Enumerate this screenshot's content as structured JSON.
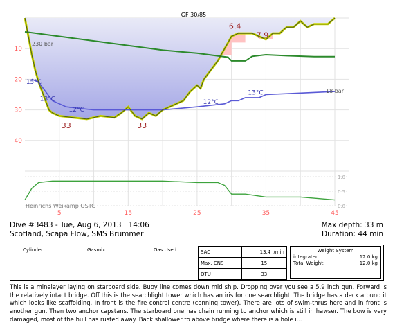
{
  "chart_data": {
    "type": "line",
    "xlim": [
      0,
      45
    ],
    "ylim": [
      0,
      50
    ],
    "x_ticks": [
      "5",
      "15",
      "25",
      "35",
      "45"
    ],
    "y_ticks": [
      "10",
      "20",
      "30",
      "40"
    ],
    "gf_label": "GF 30/85",
    "tank_label_start": "230 bar",
    "tank_label_end": "18 bar",
    "footer_left": "Heinrichs Weikamp OSTC",
    "right_ticks": [
      "1.0",
      "0.5",
      "0.0"
    ],
    "colors": {
      "depth_line": "#c8d400",
      "depth_fill_top": "#e9eaf7",
      "depth_fill_bottom": "#a4a7e6",
      "tank": "#2c8a2c",
      "temperature": "#5a5ad6",
      "ceiling": "#ffc2c2",
      "ppo2": "#3da33d",
      "grid": "#e2e2e2",
      "labels": "#a02828",
      "axis_labels": "#ff5a5a"
    },
    "depth": [
      [
        0,
        0
      ],
      [
        0.5,
        6
      ],
      [
        1,
        12
      ],
      [
        1.5,
        17
      ],
      [
        2,
        21
      ],
      [
        2.5,
        24
      ],
      [
        3,
        27
      ],
      [
        3.5,
        30
      ],
      [
        4,
        31
      ],
      [
        5,
        32
      ],
      [
        7,
        32.5
      ],
      [
        9,
        33
      ],
      [
        11,
        32
      ],
      [
        13,
        32.5
      ],
      [
        14,
        31
      ],
      [
        15,
        29
      ],
      [
        16,
        32
      ],
      [
        17,
        33
      ],
      [
        18,
        31
      ],
      [
        19,
        32
      ],
      [
        20,
        30
      ],
      [
        21,
        29
      ],
      [
        22,
        28
      ],
      [
        23,
        27
      ],
      [
        24,
        24
      ],
      [
        25,
        22
      ],
      [
        25.5,
        23
      ],
      [
        26,
        20
      ],
      [
        27,
        17
      ],
      [
        28,
        14
      ],
      [
        29,
        10
      ],
      [
        30,
        6
      ],
      [
        31,
        5
      ],
      [
        32,
        5
      ],
      [
        33,
        5
      ],
      [
        34,
        6
      ],
      [
        35,
        7
      ],
      [
        36,
        5
      ],
      [
        37,
        5
      ],
      [
        38,
        3
      ],
      [
        39,
        3
      ],
      [
        40,
        1
      ],
      [
        41,
        3
      ],
      [
        42,
        2
      ],
      [
        43,
        2
      ],
      [
        44,
        2
      ],
      [
        45,
        0
      ]
    ],
    "tank_pressure": [
      [
        0,
        4.5
      ],
      [
        5,
        6
      ],
      [
        10,
        7.5
      ],
      [
        15,
        9
      ],
      [
        20,
        10.5
      ],
      [
        25,
        11.5
      ],
      [
        29.5,
        12.8
      ],
      [
        30,
        14
      ],
      [
        32,
        14
      ],
      [
        33,
        12.5
      ],
      [
        35,
        12
      ],
      [
        38,
        12.3
      ],
      [
        42,
        12.6
      ],
      [
        45,
        12.6
      ]
    ],
    "temperature_line": [
      [
        1,
        20
      ],
      [
        2,
        21
      ],
      [
        3,
        24
      ],
      [
        4,
        27
      ],
      [
        6,
        29
      ],
      [
        8,
        29.5
      ],
      [
        10,
        30
      ],
      [
        15,
        30
      ],
      [
        20,
        30
      ],
      [
        25,
        29
      ],
      [
        29,
        28
      ],
      [
        30,
        27
      ],
      [
        31,
        27
      ],
      [
        32,
        26
      ],
      [
        34,
        26
      ],
      [
        35,
        25
      ],
      [
        40,
        24.5
      ],
      [
        45,
        24
      ]
    ],
    "ceiling": [
      [
        15,
        0
      ],
      [
        16,
        0
      ],
      [
        16,
        3
      ],
      [
        18,
        3
      ],
      [
        18,
        6
      ],
      [
        24,
        6
      ],
      [
        24,
        8
      ],
      [
        26,
        8
      ],
      [
        26,
        10
      ],
      [
        28,
        10
      ],
      [
        28,
        12
      ],
      [
        30,
        12
      ],
      [
        30,
        8
      ],
      [
        32,
        8
      ],
      [
        32,
        4
      ],
      [
        34,
        4
      ],
      [
        34,
        7
      ],
      [
        36,
        7
      ],
      [
        36,
        3
      ],
      [
        37,
        3
      ],
      [
        37,
        0
      ]
    ],
    "annotations": [
      {
        "text": "33",
        "x": 6,
        "y": 36,
        "kind": "depth"
      },
      {
        "text": "33",
        "x": 17,
        "y": 36,
        "kind": "depth"
      },
      {
        "text": "6.4",
        "x": 30.5,
        "y": 3.5,
        "kind": "depth"
      },
      {
        "text": "7.9",
        "x": 34.5,
        "y": 6.5,
        "kind": "depth"
      },
      {
        "text": "15°C",
        "x": 1.3,
        "y": 21.5,
        "kind": "temp"
      },
      {
        "text": "13°C",
        "x": 3.3,
        "y": 27,
        "kind": "temp"
      },
      {
        "text": "12°C",
        "x": 7.5,
        "y": 30.5,
        "kind": "temp"
      },
      {
        "text": "12°C",
        "x": 27,
        "y": 28,
        "kind": "temp"
      },
      {
        "text": "13°C",
        "x": 33.5,
        "y": 25,
        "kind": "temp"
      }
    ],
    "ppo2": [
      [
        0,
        0.2
      ],
      [
        1,
        0.6
      ],
      [
        2,
        0.8
      ],
      [
        4,
        0.85
      ],
      [
        10,
        0.85
      ],
      [
        20,
        0.85
      ],
      [
        25,
        0.8
      ],
      [
        28,
        0.8
      ],
      [
        29,
        0.7
      ],
      [
        30,
        0.4
      ],
      [
        32,
        0.4
      ],
      [
        35,
        0.3
      ],
      [
        40,
        0.3
      ],
      [
        45,
        0.2
      ]
    ]
  },
  "dive": {
    "title": "Dive #3483 - Tue, Aug 6, 2013   14:06",
    "location": "Scotland, Scapa Flow, SMS Brummer",
    "max_depth": "Max depth: 33 m",
    "duration": "Duration: 44 min"
  },
  "cylinders": {
    "col1": "Cylinder",
    "col2": "Gasmix",
    "col3": "Gas Used"
  },
  "stats": {
    "sac_label": "SAC",
    "sac_value": "13.4 l/min",
    "cns_label": "Max. CNS",
    "cns_value": "15",
    "otu_label": "OTU",
    "otu_value": "33"
  },
  "weight": {
    "title": "Weight System",
    "integrated_label": "integrated",
    "integrated_value": "12.0 kg",
    "total_label": "Total Weight:",
    "total_value": "12.0 kg"
  },
  "notes": "This is a minelayer laying on starboard side. Buoy line comes down mid ship. Dropping over you see a 5.9 inch gun. Forward is the relatively intact bridge. Off this is the searchlight tower which has an iris for one searchlight. The bridge has a deck around it which looks like scaffolding. In front is the fire control centre (conning tower). There are lots of swim-thrus here and in front is another gun. Then two anchor capstans. The starboard one has chain running to anchor which is still in hawser. The bow is very damaged, most of the hull has rusted away. Back shallower to above bridge where there is a hole i..."
}
